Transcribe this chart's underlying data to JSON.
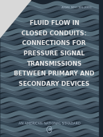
{
  "title_line1": "FLUID FLOW IN",
  "title_line2": "CLOSED CONDUITS:",
  "title_line3": "CONNECTIONS FOR",
  "title_line4": "PRESSURE SIGNAL",
  "title_line5": "TRANSMISSIONS",
  "title_line6": "BETWEEN PRIMARY AND",
  "title_line7": "SECONDARY DEVICES",
  "subtitle": "ASME MFC-8M-2001",
  "bottom_text": "AN AMERICAN NATIONAL STANDARD",
  "bg_dark": "#1a2530",
  "wave_color1": "#4a6070",
  "wave_color2": "#6a8090",
  "wave_color3": "#8aaab8",
  "title_color": "#e8e8e8",
  "subtitle_color": "#aabbcc",
  "bottom_color": "#aabbcc",
  "corner_color": "#d8d8d8",
  "fig_width": 1.49,
  "fig_height": 1.98
}
